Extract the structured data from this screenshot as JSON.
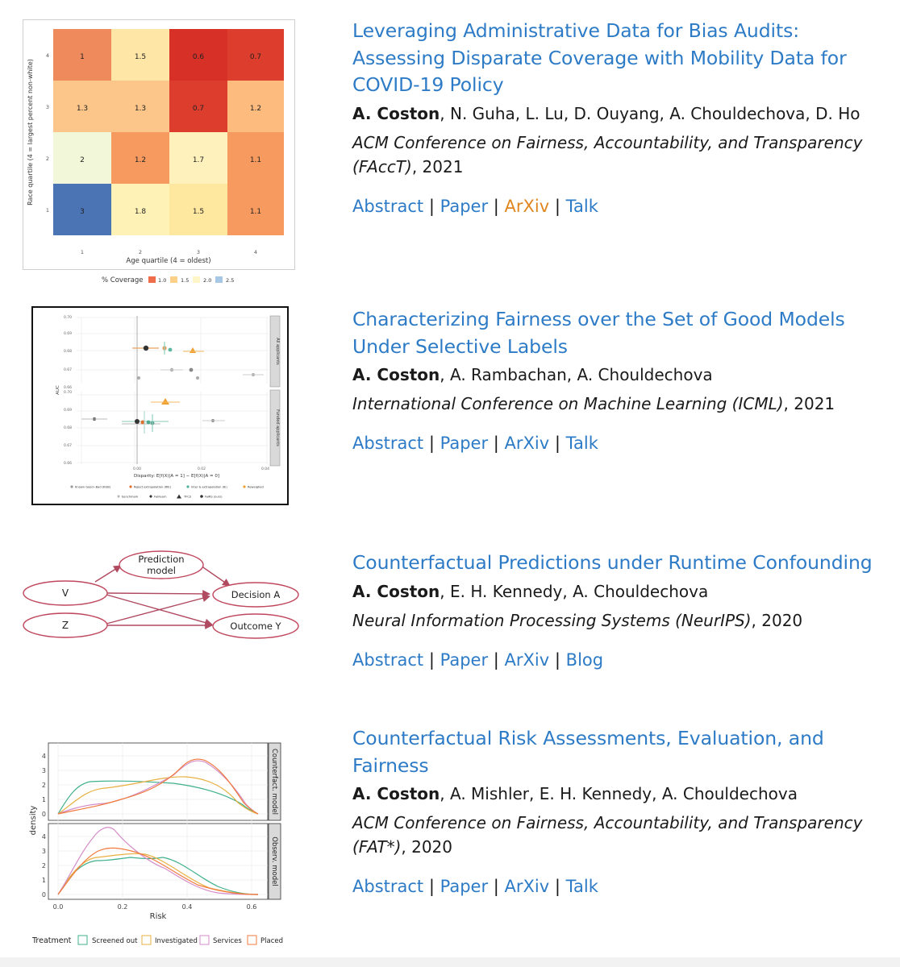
{
  "colors": {
    "link": "#2d7bc6",
    "link_visited": "#e0861f",
    "text": "#1a1a1a"
  },
  "publications": [
    {
      "title": "Leveraging Administrative Data for Bias Audits: Assessing Disparate Coverage with Mobility Data for COVID-19 Policy",
      "author_bold": "A. Coston",
      "author_rest": ", N. Guha, L. Lu, D. Ouyang, A. Chouldechova, D. Ho",
      "venue_italic": "ACM Conference on Fairness, Accountability, and Transparency (FAccT)",
      "venue_year": ", 2021",
      "links": [
        "Abstract",
        "Paper",
        "ArXiv",
        "Talk"
      ],
      "separator": "|",
      "thumbnail": {
        "heatmap": {
          "cells": [
            [
              "1",
              "1.5",
              "0.6",
              "0.7"
            ],
            [
              "1.3",
              "1.3",
              "0.7",
              "1.2"
            ],
            [
              "2",
              "1.2",
              "1.7",
              "1.1"
            ],
            [
              "3",
              "1.8",
              "1.5",
              "1.1"
            ]
          ],
          "y_ticks": [
            "4",
            "3",
            "2",
            "1"
          ],
          "x_ticks": [
            "1",
            "2",
            "3",
            "4"
          ],
          "ylabel": "Race quartile (4 = largest percent non-white)",
          "xlabel": "Age quartile (4 = oldest)",
          "legend_title": "% Coverage",
          "legend_items": [
            "1.0",
            "1.5",
            "2.0",
            "2.5"
          ]
        }
      }
    },
    {
      "title": "Characterizing Fairness over the Set of Good Models Under Selective Labels",
      "author_bold": "A. Coston",
      "author_rest": ", A. Rambachan, A. Chouldechova",
      "venue_italic": "International Conference on Machine Learning (ICML)",
      "venue_year": ", 2021",
      "links": [
        "Abstract",
        "Paper",
        "ArXiv",
        "Talk"
      ],
      "separator": "|",
      "thumbnail": {
        "scatter": {
          "y_ticks_top": [
            "0.70",
            "0.69",
            "0.68",
            "0.67",
            "0.66"
          ],
          "y_ticks_bottom": [
            "0.70",
            "0.69",
            "0.68",
            "0.67",
            "0.66"
          ],
          "x_ticks": [
            "0.00",
            "0.02",
            "0.04"
          ],
          "ylabel": "AUC",
          "xlabel": "Disparity: E[f(X)|A = 1] − E[f(X)|A = 0]",
          "facet_top": "All applicants",
          "facet_bottom": "Funded applicants",
          "legend_row1": [
            "Known Good−Bad (KGB)",
            "Reject extrapolation (RIE)",
            "Inter & extrapolation (IE)",
            "Reweighed"
          ],
          "legend_row2": [
            "benchmark",
            "Fairlearn",
            "TFCS",
            "FaiRS (ours)"
          ]
        }
      }
    },
    {
      "title": "Counterfactual Predictions under Runtime Confounding",
      "author_bold": "A. Coston",
      "author_rest": ", E. H. Kennedy, A. Chouldechova",
      "venue_italic": "Neural Information Processing Systems (NeurIPS)",
      "venue_year": ", 2020",
      "links": [
        "Abstract",
        "Paper",
        "ArXiv",
        "Blog"
      ],
      "separator": "|",
      "thumbnail": {
        "diagram": {
          "node_pred_line1": "Prediction",
          "node_pred_line2": "model",
          "node_v": "V",
          "node_z": "Z",
          "node_decision": "Decision A",
          "node_outcome": "Outcome Y"
        }
      }
    },
    {
      "title": "Counterfactual Risk Assessments, Evaluation, and Fairness",
      "author_bold": "A. Coston",
      "author_rest": ", A. Mishler, E. H. Kennedy, A. Chouldechova",
      "venue_italic": "ACM Conference on Fairness, Accountability, and Transparency (FAT*)",
      "venue_year": ", 2020",
      "links": [
        "Abstract",
        "Paper",
        "ArXiv",
        "Talk"
      ],
      "separator": "|",
      "thumbnail": {
        "density": {
          "y_ticks": [
            "4",
            "3",
            "2",
            "1",
            "0"
          ],
          "x_ticks": [
            "0.0",
            "0.2",
            "0.4",
            "0.6"
          ],
          "ylabel": "density",
          "xlabel": "Risk",
          "facet_top": "Counterfact. model",
          "facet_bottom": "Observ. model",
          "legend_title": "Treatment",
          "legend_items": [
            "Screened out",
            "Investigated",
            "Services",
            "Placed"
          ]
        }
      }
    }
  ]
}
